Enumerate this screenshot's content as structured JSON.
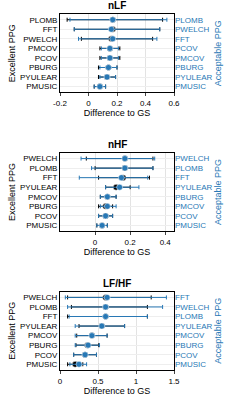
{
  "chart_data": [
    {
      "type": "scatter",
      "title": "nLF",
      "x_label": "Difference to GS",
      "xlim": [
        -0.2,
        0.6
      ],
      "xticks": [
        -0.2,
        0,
        0.2,
        0.4,
        0.6
      ],
      "grid": true,
      "series": [
        {
          "name": "Excellent PPG",
          "color": "#000000",
          "marker": "circle",
          "categories": [
            "PLOMB",
            "FFT",
            "PWELCH",
            "PMCOV",
            "PCOV",
            "PBURG",
            "PYULEAR",
            "PMUSIC"
          ],
          "values": [
            0.17,
            0.17,
            0.16,
            0.15,
            0.15,
            0.14,
            0.13,
            0.08
          ],
          "error_minus": [
            0.32,
            0.27,
            0.21,
            0.07,
            0.07,
            0.07,
            0.06,
            0.04
          ],
          "error_plus": [
            0.35,
            0.33,
            0.29,
            0.07,
            0.07,
            0.06,
            0.06,
            0.04
          ]
        },
        {
          "name": "Acceptable PPG",
          "color": "#2878b5",
          "marker": "circle",
          "axis": "y2",
          "categories": [
            "PLOMB",
            "PWELCH",
            "FFT",
            "PCOV",
            "PMCOV",
            "PBURG",
            "PYULEAR",
            "PMUSIC"
          ],
          "values": [
            0.17,
            0.16,
            0.17,
            0.15,
            0.15,
            0.14,
            0.13,
            0.08
          ],
          "error_minus": [
            0.3,
            0.26,
            0.24,
            0.06,
            0.06,
            0.06,
            0.05,
            0.04
          ],
          "error_plus": [
            0.38,
            0.34,
            0.31,
            0.06,
            0.06,
            0.06,
            0.06,
            0.04
          ]
        }
      ]
    },
    {
      "type": "scatter",
      "title": "nHF",
      "x_label": "Difference to GS",
      "xlim": [
        -0.2,
        0.45
      ],
      "xticks": [
        0,
        0.2,
        0.4
      ],
      "grid": true,
      "series": [
        {
          "name": "Excellent PPG",
          "color": "#000000",
          "marker": "circle",
          "categories": [
            "PWELCH",
            "PLOMB",
            "FFT",
            "PYULEAR",
            "PMCOV",
            "PBURG",
            "PCOV",
            "PMUSIC"
          ],
          "values": [
            0.17,
            0.17,
            0.16,
            0.12,
            0.07,
            0.06,
            0.06,
            0.04
          ],
          "error_minus": [
            0.22,
            0.17,
            0.14,
            0.06,
            0.04,
            0.04,
            0.04,
            0.03
          ],
          "error_plus": [
            0.16,
            0.16,
            0.15,
            0.08,
            0.05,
            0.04,
            0.04,
            0.03
          ]
        },
        {
          "name": "Acceptable PPG",
          "color": "#2878b5",
          "marker": "circle",
          "axis": "y2",
          "categories": [
            "PWELCH",
            "PLOMB",
            "FFT",
            "PYULEAR",
            "PBURG",
            "PMCOV",
            "PCOV",
            "PMUSIC"
          ],
          "values": [
            0.17,
            0.17,
            0.15,
            0.14,
            0.07,
            0.07,
            0.06,
            0.04
          ],
          "error_minus": [
            0.25,
            0.19,
            0.24,
            0.08,
            0.04,
            0.04,
            0.04,
            0.03
          ],
          "error_plus": [
            0.17,
            0.16,
            0.15,
            0.11,
            0.05,
            0.05,
            0.04,
            0.03
          ]
        }
      ]
    },
    {
      "type": "scatter",
      "title": "LF/HF",
      "x_label": "Difference to GS",
      "xlim": [
        0,
        1.5
      ],
      "xticks": [
        0,
        0.5,
        1,
        1.5
      ],
      "grid": true,
      "series": [
        {
          "name": "Excellent PPG",
          "color": "#000000",
          "marker": "circle",
          "categories": [
            "PWELCH",
            "PLOMB",
            "FFT",
            "PYULEAR",
            "PMCOV",
            "PBURG",
            "PCOV",
            "PMUSIC"
          ],
          "values": [
            0.6,
            0.6,
            0.6,
            0.55,
            0.42,
            0.36,
            0.33,
            0.2
          ],
          "error_minus": [
            0.5,
            0.45,
            0.5,
            0.3,
            0.2,
            0.15,
            0.15,
            0.1
          ],
          "error_plus": [
            0.6,
            0.55,
            0.55,
            0.3,
            0.2,
            0.15,
            0.15,
            0.1
          ]
        },
        {
          "name": "Acceptable PPG",
          "color": "#2878b5",
          "marker": "circle",
          "axis": "y2",
          "categories": [
            "FFT",
            "PWELCH",
            "PLOMB",
            "PYULEAR",
            "PMCOV",
            "PBURG",
            "PCOV",
            "PMUSIC"
          ],
          "values": [
            0.62,
            0.6,
            0.6,
            0.55,
            0.42,
            0.37,
            0.33,
            0.25
          ],
          "error_minus": [
            0.55,
            0.5,
            0.48,
            0.35,
            0.22,
            0.17,
            0.15,
            0.12
          ],
          "error_plus": [
            0.78,
            0.75,
            0.55,
            0.3,
            0.2,
            0.15,
            0.15,
            0.1
          ]
        }
      ]
    }
  ]
}
